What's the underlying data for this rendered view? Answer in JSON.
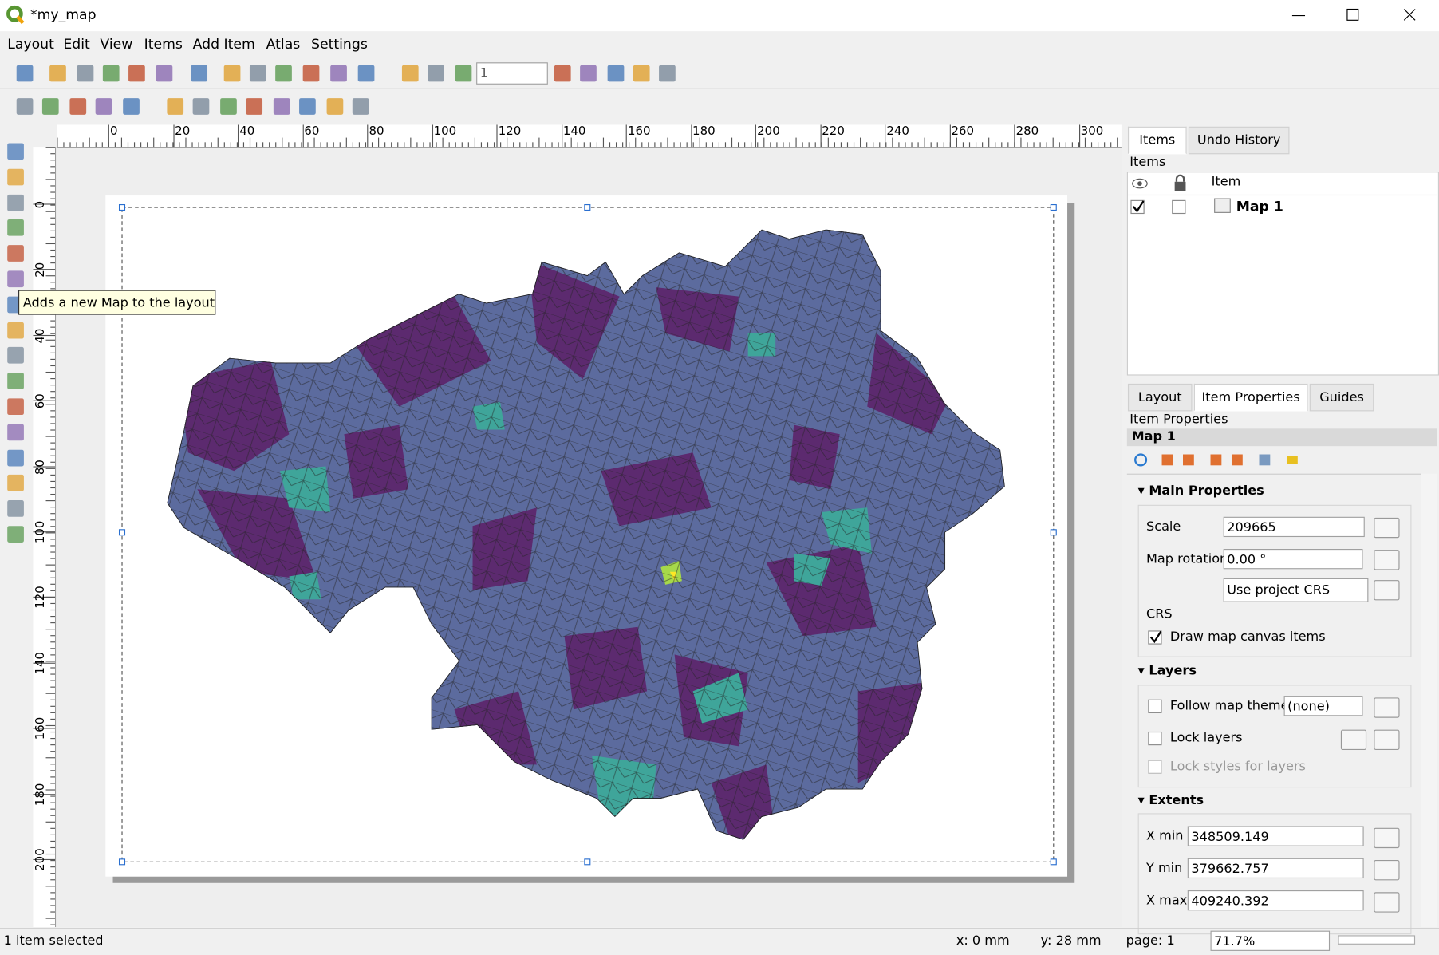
{
  "window": {
    "title": "*my_map"
  },
  "menu": [
    "Layout",
    "Edit",
    "View",
    "Items",
    "Add Item",
    "Atlas",
    "Settings"
  ],
  "toolbar": {
    "page": "1"
  },
  "ruler": {
    "horizontal": [
      0,
      20,
      40,
      60,
      80,
      100,
      120,
      140,
      160,
      180,
      200,
      220,
      240,
      260,
      280,
      300
    ],
    "vertical": [
      0,
      20,
      40,
      60,
      80,
      100,
      120,
      140,
      160,
      180,
      200
    ]
  },
  "tooltip": "Adds a new Map to the layout",
  "items_panel": {
    "tabs": [
      "Items",
      "Undo History"
    ],
    "title": "Items",
    "column": "Item",
    "row": "Map 1"
  },
  "properties_panel": {
    "tabs": [
      "Layout",
      "Item Properties",
      "Guides"
    ],
    "title": "Item Properties",
    "item": "Map 1",
    "main": {
      "title": "Main Properties",
      "scale_label": "Scale",
      "scale": "209665",
      "rotation_label": "Map rotation",
      "rotation": "0.00 °",
      "crs_select": "Use project CRS",
      "crs_label": "CRS",
      "draw_canvas": "Draw map canvas items"
    },
    "layers": {
      "title": "Layers",
      "follow": "Follow map theme",
      "theme": "(none)",
      "lock": "Lock layers",
      "lock_styles": "Lock styles for layers"
    },
    "extents": {
      "title": "Extents",
      "xmin_label": "X min",
      "xmin": "348509.149",
      "ymin_label": "Y min",
      "ymin": "379662.757",
      "xmax_label": "X max",
      "xmax": "409240.392"
    }
  },
  "status": {
    "selection": "1 item selected",
    "x": "x: 0 mm",
    "y": "y: 28 mm",
    "page": "page: 1",
    "zoom": "71.7%"
  }
}
